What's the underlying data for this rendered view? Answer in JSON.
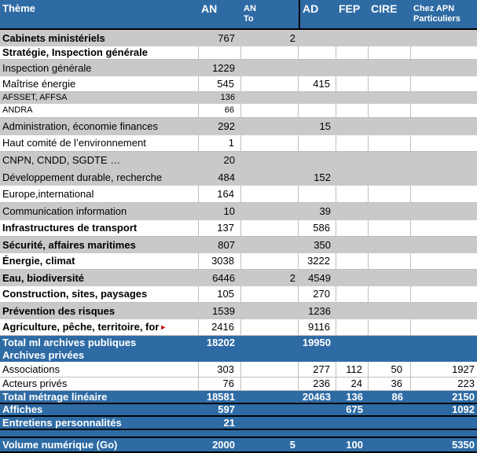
{
  "colors": {
    "header_blue": "#2E6BA4",
    "row_gray": "#C9C9C9",
    "cell_border": "#BFBFBF",
    "separator_black": "#000000",
    "overflow_arrow_red": "#C00000"
  },
  "header": {
    "theme": "Thème",
    "an": "AN",
    "an_to_line1": "AN",
    "an_to_line2": "To",
    "ad": "AD",
    "fep": "FEP",
    "cire": "CIRE",
    "chez_line1": "Chez APN",
    "chez_line2": "Particuliers"
  },
  "overflow_marker": "►",
  "rows": [
    {
      "theme": "Cabinets ministériels",
      "an": "767",
      "an_to": "2",
      "bg": "gray",
      "bold": true
    },
    {
      "theme": "Stratégie, Inspection générale",
      "bg": "white",
      "bold": true
    },
    {
      "theme": "Inspection générale",
      "an": "1229",
      "bg": "gray"
    },
    {
      "theme": "Maîtrise énergie",
      "an": "545",
      "ad": "415",
      "bg": "white"
    },
    {
      "theme": "AFSSET, AFFSA",
      "an": "136",
      "bg": "gray",
      "small": true
    },
    {
      "theme": "ANDRA",
      "an": "66",
      "bg": "white",
      "small": true
    },
    {
      "theme": "Administration, économie finances",
      "an": "292",
      "ad": "15",
      "bg": "gray"
    },
    {
      "theme": "Haut comité de l’environnement",
      "an": "1",
      "bg": "white"
    },
    {
      "theme": "CNPN, CNDD, SGDTE …",
      "an": "20",
      "bg": "gray"
    },
    {
      "theme": "Développement durable, recherche",
      "an": "484",
      "ad": "152",
      "bg": "gray"
    },
    {
      "theme": "Europe,international",
      "an": "164",
      "bg": "white"
    },
    {
      "theme": "Communication information",
      "an": "10",
      "ad": "39",
      "bg": "gray"
    },
    {
      "theme": "Infrastructures de transport",
      "an": "137",
      "ad": "586",
      "bg": "white",
      "bold": true
    },
    {
      "theme": "Sécurité, affaires maritimes",
      "an": "807",
      "ad": "350",
      "bg": "gray",
      "bold": true
    },
    {
      "theme": "Énergie, climat",
      "an": "3038",
      "ad": "3222",
      "bg": "white",
      "bold": true
    },
    {
      "theme": "Eau, biodiversité",
      "an": "6446",
      "an_to": "2",
      "ad": "4549",
      "bg": "gray",
      "bold": true
    },
    {
      "theme": "Construction, sites, paysages",
      "an": "105",
      "ad": "270",
      "bg": "white",
      "bold": true
    },
    {
      "theme": "Prévention des risques",
      "an": "1539",
      "ad": "1236",
      "bg": "gray",
      "bold": true
    },
    {
      "theme": "Agriculture, pêche, territoire, for",
      "an": "2416",
      "ad": "9116",
      "bg": "white",
      "bold": true,
      "overflow": true
    },
    {
      "theme": "Total ml archives publiques",
      "an": "18202",
      "ad": "19950",
      "bg": "blue"
    },
    {
      "theme": "Archives privées",
      "bg": "blue"
    },
    {
      "theme": "Associations",
      "an": "303",
      "ad": "277",
      "fep": "112",
      "cire": "50",
      "chez": "1927",
      "bg": "white"
    },
    {
      "theme": "Acteurs privés",
      "an": "76",
      "ad": "236",
      "fep": "24",
      "cire": "36",
      "chez": "223",
      "bg": "white"
    },
    {
      "theme": "Total métrage linéaire",
      "an": "18581",
      "ad": "20463",
      "fep": "136",
      "cire": "86",
      "chez": "2150",
      "bg": "blue",
      "sep": true
    },
    {
      "theme": "Affiches",
      "an": "597",
      "fep": "675",
      "chez": "1092",
      "bg": "blue",
      "sep": true
    },
    {
      "theme": "Entretiens personnalités",
      "an": "21",
      "bg": "blue",
      "sep": true
    },
    {
      "theme": "",
      "bg": "blue",
      "spacer": true,
      "sep": true
    },
    {
      "theme": "Volume numérique (Go)",
      "an": "2000",
      "an_to": "5",
      "fep": "100",
      "chez": "5350",
      "bg": "blue",
      "sep": true
    }
  ]
}
